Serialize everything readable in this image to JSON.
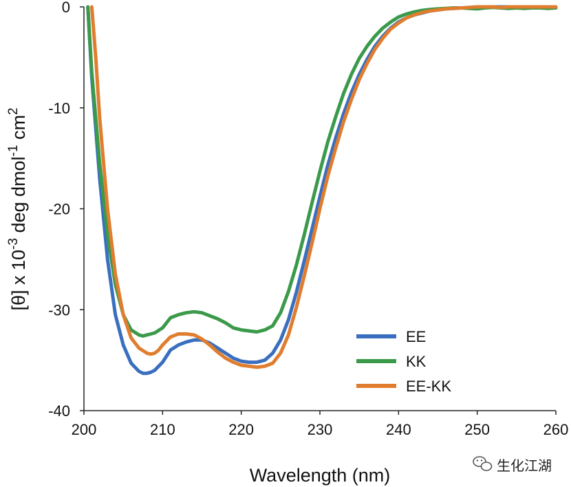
{
  "chart_data": {
    "type": "line",
    "xlabel": "Wavelength (nm)",
    "ylabel": {
      "prefix": "[θ] x 10",
      "sup1": "-3",
      "middle": " deg dmol",
      "sup2": "-1",
      "suffix": " cm",
      "sup3": "2"
    },
    "xlim": [
      200,
      260
    ],
    "ylim": [
      -40,
      0
    ],
    "xticks": [
      200,
      210,
      220,
      230,
      240,
      250,
      260
    ],
    "yticks": [
      0,
      -10,
      -20,
      -30,
      -40
    ],
    "grid": false,
    "legend_position": "lower-right",
    "series": [
      {
        "name": "EE",
        "color": "#3a6fbf",
        "x": [
          200.5,
          201,
          202,
          203,
          204,
          205,
          206,
          207,
          207.5,
          208,
          208.5,
          209,
          210,
          211,
          212,
          213,
          214,
          215,
          216,
          217,
          218,
          219,
          220,
          221,
          222,
          223,
          224,
          225,
          226,
          227,
          228,
          229,
          230,
          231,
          232,
          233,
          234,
          235,
          236,
          237,
          238,
          239,
          240,
          241,
          242,
          243,
          244,
          245,
          246,
          247,
          248,
          249,
          250,
          251,
          252,
          253,
          254,
          255,
          256,
          257,
          258,
          259,
          260
        ],
        "y": [
          0,
          -7,
          -17,
          -25,
          -30.5,
          -33.5,
          -35.3,
          -36.1,
          -36.3,
          -36.3,
          -36.2,
          -36.0,
          -35.2,
          -34.0,
          -33.5,
          -33.2,
          -33.0,
          -33.0,
          -33.3,
          -33.8,
          -34.3,
          -34.8,
          -35.1,
          -35.2,
          -35.2,
          -35.0,
          -34.3,
          -33.0,
          -31.0,
          -28.3,
          -25.2,
          -22.0,
          -18.8,
          -15.7,
          -13.0,
          -10.6,
          -8.5,
          -6.7,
          -5.2,
          -3.9,
          -2.9,
          -2.1,
          -1.5,
          -1.1,
          -0.8,
          -0.6,
          -0.4,
          -0.3,
          -0.2,
          -0.15,
          -0.1,
          -0.1,
          -0.05,
          0,
          0,
          0,
          0,
          0,
          -0.05,
          0,
          -0.05,
          0,
          -0.05
        ]
      },
      {
        "name": "KK",
        "color": "#3b9a4a",
        "x": [
          200.5,
          201,
          202,
          203,
          204,
          205,
          206,
          207,
          207.5,
          208,
          208.5,
          209,
          210,
          211,
          212,
          213,
          214,
          215,
          216,
          217,
          218,
          219,
          220,
          221,
          222,
          223,
          224,
          225,
          226,
          227,
          228,
          229,
          230,
          231,
          232,
          233,
          234,
          235,
          236,
          237,
          238,
          239,
          240,
          241,
          242,
          243,
          244,
          245,
          246,
          247,
          248,
          249,
          250,
          251,
          252,
          253,
          254,
          255,
          256,
          257,
          258,
          259,
          260
        ],
        "y": [
          0,
          -6.5,
          -15.5,
          -22.5,
          -27.5,
          -30.5,
          -32.0,
          -32.5,
          -32.6,
          -32.5,
          -32.4,
          -32.3,
          -31.8,
          -30.8,
          -30.5,
          -30.3,
          -30.2,
          -30.3,
          -30.6,
          -30.9,
          -31.3,
          -31.8,
          -32.0,
          -32.1,
          -32.2,
          -32.0,
          -31.6,
          -30.3,
          -28.2,
          -25.6,
          -22.6,
          -19.4,
          -16.3,
          -13.4,
          -10.9,
          -8.6,
          -6.7,
          -5.1,
          -3.9,
          -2.9,
          -2.1,
          -1.5,
          -1.0,
          -0.7,
          -0.5,
          -0.35,
          -0.25,
          -0.2,
          -0.15,
          -0.1,
          -0.1,
          -0.15,
          -0.2,
          -0.1,
          -0.05,
          -0.1,
          -0.15,
          -0.1,
          -0.15,
          -0.1,
          -0.1,
          -0.15,
          -0.1
        ]
      },
      {
        "name": "EE-KK",
        "color": "#e07d2e",
        "x": [
          201,
          201.5,
          202,
          203,
          204,
          205,
          206,
          207,
          208,
          208.5,
          209,
          209.5,
          210,
          211,
          212,
          213,
          214,
          215,
          216,
          217,
          218,
          219,
          220,
          221,
          222,
          223,
          224,
          225,
          226,
          227,
          228,
          229,
          230,
          231,
          232,
          233,
          234,
          235,
          236,
          237,
          238,
          239,
          240,
          241,
          242,
          243,
          244,
          245,
          246,
          247,
          248,
          249,
          250,
          251,
          252,
          253,
          254,
          255,
          256,
          257,
          258,
          259,
          260
        ],
        "y": [
          0,
          -5,
          -11,
          -20,
          -26.5,
          -30.5,
          -32.8,
          -33.8,
          -34.3,
          -34.4,
          -34.3,
          -34.0,
          -33.5,
          -32.7,
          -32.4,
          -32.4,
          -32.5,
          -32.9,
          -33.5,
          -34.2,
          -34.8,
          -35.2,
          -35.5,
          -35.6,
          -35.7,
          -35.6,
          -35.3,
          -34.3,
          -32.5,
          -29.8,
          -26.7,
          -23.4,
          -20.0,
          -16.8,
          -14.0,
          -11.4,
          -9.2,
          -7.2,
          -5.6,
          -4.2,
          -3.1,
          -2.2,
          -1.6,
          -1.1,
          -0.8,
          -0.55,
          -0.4,
          -0.3,
          -0.2,
          -0.15,
          -0.1,
          -0.05,
          0,
          0,
          0,
          -0.05,
          0,
          0,
          0,
          0,
          0,
          0,
          0
        ]
      }
    ]
  },
  "watermark": {
    "icon": "wechat-icon",
    "text": "生化江湖"
  }
}
